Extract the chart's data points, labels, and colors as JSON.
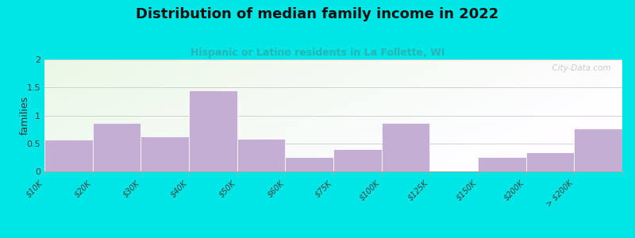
{
  "title": "Distribution of median family income in 2022",
  "subtitle": "Hispanic or Latino residents in La Follette, WI",
  "ylabel": "families",
  "categories": [
    "$10K",
    "$20K",
    "$30K",
    "$40K",
    "$50K",
    "$60K",
    "$75K",
    "$100K",
    "$125K",
    "$150K",
    "$200K",
    "> $200K"
  ],
  "values": [
    0.57,
    0.87,
    0.63,
    1.45,
    0.58,
    0.25,
    0.4,
    0.87,
    0.0,
    0.25,
    0.34,
    0.76
  ],
  "bar_color": "#c5aed4",
  "ylim": [
    0,
    2.0
  ],
  "yticks": [
    0,
    0.5,
    1,
    1.5,
    2
  ],
  "outer_bg": "#00e5e5",
  "title_color": "#111111",
  "subtitle_color": "#2ab5b5",
  "watermark": "  City-Data.com",
  "grid_color": "#dddddd",
  "bg_top_left": "#e8f5e0",
  "bg_top_right": "#f0f8ee",
  "bg_bottom_left": "#d8eedc",
  "bg_bottom_right": "#eef5f0"
}
